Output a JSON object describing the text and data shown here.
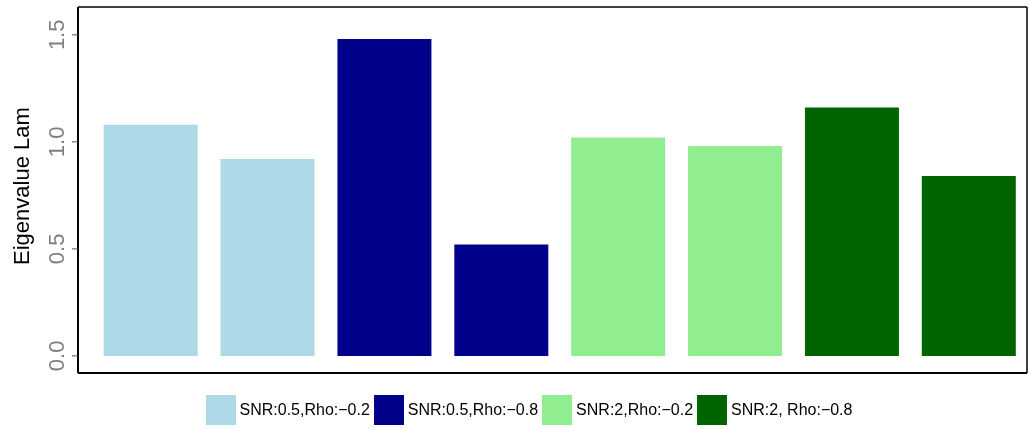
{
  "chart_data": {
    "type": "bar",
    "ylabel": "Eigenvalue Lam",
    "categories": [
      null,
      null,
      null,
      null,
      null,
      null,
      null,
      null
    ],
    "series": [
      {
        "name": "SNR:0.5,Rho:−0.2",
        "color": "#add8e6",
        "values": [
          1.08,
          0.92,
          null,
          null,
          null,
          null,
          null,
          null
        ]
      },
      {
        "name": "SNR:0.5,Rho:−0.8",
        "color": "#00008b",
        "values": [
          null,
          null,
          1.48,
          0.52,
          null,
          null,
          null,
          null
        ]
      },
      {
        "name": "SNR:2,Rho:−0.2",
        "color": "#90ee90",
        "values": [
          null,
          null,
          null,
          null,
          1.02,
          0.98,
          null,
          null
        ]
      },
      {
        "name": "SNR:2, Rho:−0.8",
        "color": "#006400",
        "values": [
          null,
          null,
          null,
          null,
          null,
          null,
          1.16,
          0.84
        ]
      }
    ],
    "ylim": [
      -0.08,
      1.63
    ],
    "yticks": [
      {
        "value": 0,
        "label": "0.0"
      },
      0.5,
      {
        "value": 1,
        "label": "1.0"
      },
      1.5
    ],
    "grid": false,
    "legend": "bottom",
    "tick_labels": "y"
  }
}
